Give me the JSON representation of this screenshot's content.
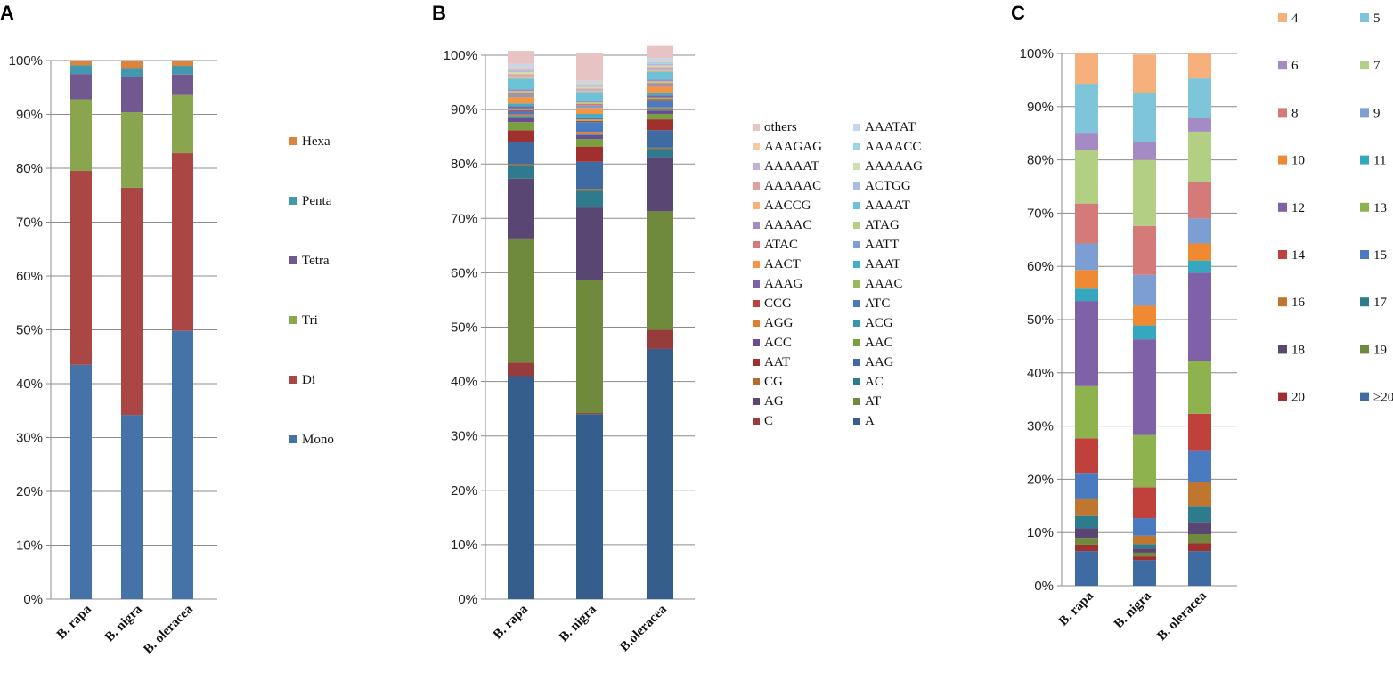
{
  "chart_data": [
    {
      "panel": "A",
      "type": "bar",
      "stacked": true,
      "percent": true,
      "categories": [
        "B. rapa",
        "B. nigra",
        "B. oleracea"
      ],
      "ylim": [
        0,
        100
      ],
      "yticks": [
        "0%",
        "10%",
        "20%",
        "30%",
        "40%",
        "50%",
        "60%",
        "70%",
        "80%",
        "90%",
        "100%"
      ],
      "series": [
        {
          "name": "Mono",
          "color": "#4573a7",
          "values": [
            43.5,
            34.2,
            49.8
          ]
        },
        {
          "name": "Di",
          "color": "#aa4643",
          "values": [
            36.0,
            42.2,
            33.0
          ]
        },
        {
          "name": "Tri",
          "color": "#89a54e",
          "values": [
            13.3,
            14.0,
            10.8
          ]
        },
        {
          "name": "Tetra",
          "color": "#71588f",
          "values": [
            4.7,
            6.5,
            3.8
          ]
        },
        {
          "name": "Penta",
          "color": "#4198af",
          "values": [
            1.6,
            1.7,
            1.6
          ]
        },
        {
          "name": "Hexa",
          "color": "#db843d",
          "values": [
            0.9,
            1.4,
            1.0
          ]
        }
      ]
    },
    {
      "panel": "B",
      "type": "bar",
      "stacked": true,
      "percent": true,
      "categories": [
        "B. rapa",
        "B. nigra",
        "B.oleracea"
      ],
      "ylim": [
        0,
        100
      ],
      "yticks": [
        "0%",
        "10%",
        "20%",
        "30%",
        "40%",
        "50%",
        "60%",
        "70%",
        "80%",
        "90%",
        "100%"
      ],
      "series": [
        {
          "name": "A",
          "color": "#365e8c",
          "values": [
            41.0,
            34.0,
            46.0
          ]
        },
        {
          "name": "C",
          "color": "#963d3b",
          "values": [
            2.5,
            0.2,
            3.5
          ]
        },
        {
          "name": "AT",
          "color": "#6f8a3d",
          "values": [
            22.8,
            24.5,
            21.8
          ]
        },
        {
          "name": "AG",
          "color": "#5a4673",
          "values": [
            11.0,
            13.3,
            10.0
          ]
        },
        {
          "name": "AC",
          "color": "#2e7b8d",
          "values": [
            2.5,
            3.2,
            1.5
          ]
        },
        {
          "name": "CG",
          "color": "#b86c2b",
          "values": [
            0.2,
            0.2,
            0.2
          ]
        },
        {
          "name": "AAG",
          "color": "#3f6ba3",
          "values": [
            4.0,
            5.0,
            3.2
          ]
        },
        {
          "name": "AAT",
          "color": "#a0302e",
          "values": [
            2.2,
            2.8,
            2.0
          ]
        },
        {
          "name": "AAC",
          "color": "#79a040",
          "values": [
            1.5,
            1.4,
            1.0
          ]
        },
        {
          "name": "ACC",
          "color": "#6b4c93",
          "values": [
            0.8,
            0.7,
            0.6
          ]
        },
        {
          "name": "ACG",
          "color": "#3596ad",
          "values": [
            0.3,
            0.3,
            0.3
          ]
        },
        {
          "name": "AGG",
          "color": "#e07f2e",
          "values": [
            0.3,
            0.3,
            0.3
          ]
        },
        {
          "name": "ATC",
          "color": "#4a7bc0",
          "values": [
            0.6,
            1.8,
            1.3
          ]
        },
        {
          "name": "CCG",
          "color": "#c0403c",
          "values": [
            0.2,
            0.2,
            0.2
          ]
        },
        {
          "name": "AAAC",
          "color": "#97bb58",
          "values": [
            0.3,
            0.3,
            0.3
          ]
        },
        {
          "name": "AAAG",
          "color": "#7f61a8",
          "values": [
            0.4,
            0.4,
            0.4
          ]
        },
        {
          "name": "AAAT",
          "color": "#42aec7",
          "values": [
            0.5,
            0.6,
            0.5
          ]
        },
        {
          "name": "AACT",
          "color": "#f59542",
          "values": [
            1.2,
            1.1,
            1.1
          ]
        },
        {
          "name": "AATT",
          "color": "#7c9ed2",
          "values": [
            0.4,
            0.4,
            0.4
          ]
        },
        {
          "name": "ATAC",
          "color": "#d47a78",
          "values": [
            0.3,
            0.3,
            0.3
          ]
        },
        {
          "name": "ATAG",
          "color": "#b3cf84",
          "values": [
            0.4,
            0.3,
            0.3
          ]
        },
        {
          "name": "AAAAC",
          "color": "#a48bc3",
          "values": [
            0.3,
            0.3,
            0.3
          ]
        },
        {
          "name": "AAAAT",
          "color": "#6cc2d6",
          "values": [
            2.0,
            1.6,
            1.5
          ]
        },
        {
          "name": "AACCG",
          "color": "#f7b075",
          "values": [
            0.2,
            0.2,
            0.2
          ]
        },
        {
          "name": "ACTGG",
          "color": "#a7bde2",
          "values": [
            0.3,
            0.3,
            0.3
          ]
        },
        {
          "name": "AAAAAC",
          "color": "#e0a09e",
          "values": [
            0.3,
            0.2,
            0.3
          ]
        },
        {
          "name": "AAAAAG",
          "color": "#cfe0ae",
          "values": [
            0.4,
            0.3,
            0.3
          ]
        },
        {
          "name": "AAAAAT",
          "color": "#c1b1d9",
          "values": [
            0.3,
            0.2,
            0.3
          ]
        },
        {
          "name": "AAAACC",
          "color": "#9fd5e3",
          "values": [
            0.3,
            0.3,
            0.3
          ]
        },
        {
          "name": "AAAGAG",
          "color": "#f8c9a1",
          "values": [
            0.3,
            0.2,
            0.3
          ]
        },
        {
          "name": "AAATAT",
          "color": "#c7d6ef",
          "values": [
            0.6,
            0.4,
            0.5
          ]
        },
        {
          "name": "others",
          "color": "#e7c3c3",
          "values": [
            2.4,
            5.1,
            2.2
          ]
        }
      ]
    },
    {
      "panel": "C",
      "type": "bar",
      "stacked": true,
      "percent": true,
      "categories": [
        "B. rapa",
        "B. nigra",
        "B. oleracea"
      ],
      "ylim": [
        0,
        100
      ],
      "yticks": [
        "0%",
        "10%",
        "20%",
        "30%",
        "40%",
        "50%",
        "60%",
        "70%",
        "80%",
        "90%",
        "100%"
      ],
      "series": [
        {
          "name": "≥20",
          "color": "#3f6ba3",
          "values": [
            6.5,
            4.8,
            6.5
          ]
        },
        {
          "name": "20",
          "color": "#a0302e",
          "values": [
            1.2,
            0.7,
            1.5
          ]
        },
        {
          "name": "19",
          "color": "#6f8a3d",
          "values": [
            1.3,
            0.7,
            1.7
          ]
        },
        {
          "name": "18",
          "color": "#5a4673",
          "values": [
            1.8,
            0.8,
            2.3
          ]
        },
        {
          "name": "17",
          "color": "#2e7b8d",
          "values": [
            2.3,
            0.8,
            3.0
          ]
        },
        {
          "name": "16",
          "color": "#c0762f",
          "values": [
            3.3,
            1.6,
            4.5
          ]
        },
        {
          "name": "15",
          "color": "#4a7bc0",
          "values": [
            4.8,
            3.3,
            5.8
          ]
        },
        {
          "name": "14",
          "color": "#c0403c",
          "values": [
            6.5,
            5.8,
            7.0
          ]
        },
        {
          "name": "13",
          "color": "#8db24e",
          "values": [
            9.8,
            9.8,
            10.0
          ]
        },
        {
          "name": "12",
          "color": "#7f61a8",
          "values": [
            16.0,
            18.0,
            16.5
          ]
        },
        {
          "name": "11",
          "color": "#35a7bf",
          "values": [
            2.3,
            2.6,
            2.3
          ]
        },
        {
          "name": "10",
          "color": "#f08a32",
          "values": [
            3.5,
            3.7,
            3.2
          ]
        },
        {
          "name": "9",
          "color": "#7c9ed2",
          "values": [
            5.0,
            5.8,
            4.7
          ]
        },
        {
          "name": "8",
          "color": "#d47a78",
          "values": [
            7.5,
            9.2,
            6.8
          ]
        },
        {
          "name": "7",
          "color": "#b3cf84",
          "values": [
            10.0,
            12.4,
            9.5
          ]
        },
        {
          "name": "6",
          "color": "#a48bc3",
          "values": [
            3.3,
            3.3,
            2.5
          ]
        },
        {
          "name": "5",
          "color": "#7fc5d9",
          "values": [
            9.2,
            9.2,
            7.5
          ]
        },
        {
          "name": "4",
          "color": "#f6b07c",
          "values": [
            5.7,
            7.3,
            4.7
          ]
        }
      ]
    }
  ]
}
